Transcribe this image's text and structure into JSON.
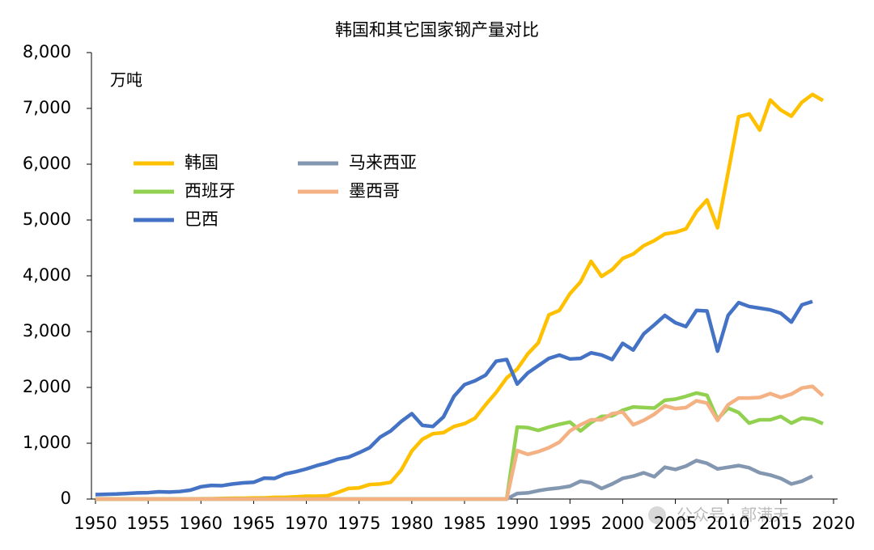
{
  "chart_data": {
    "type": "line",
    "title": "韩国和其它国家钢产量对比",
    "unit_label": "万吨",
    "watermark": "公众号 · 郭满天",
    "x": [
      1950,
      1951,
      1952,
      1953,
      1954,
      1955,
      1956,
      1957,
      1958,
      1959,
      1960,
      1961,
      1962,
      1963,
      1964,
      1965,
      1966,
      1967,
      1968,
      1969,
      1970,
      1971,
      1972,
      1973,
      1974,
      1975,
      1976,
      1977,
      1978,
      1979,
      1980,
      1981,
      1982,
      1983,
      1984,
      1985,
      1986,
      1987,
      1988,
      1989,
      1990,
      1991,
      1992,
      1993,
      1994,
      1995,
      1996,
      1997,
      1998,
      1999,
      2000,
      2001,
      2002,
      2003,
      2004,
      2005,
      2006,
      2007,
      2008,
      2009,
      2010,
      2011,
      2012,
      2013,
      2014,
      2015,
      2016,
      2017,
      2018,
      2019
    ],
    "xlim": [
      1950,
      2020
    ],
    "xticks": [
      1950,
      1955,
      1960,
      1965,
      1970,
      1975,
      1980,
      1985,
      1990,
      1995,
      2000,
      2005,
      2010,
      2015,
      2020
    ],
    "ylim": [
      0,
      8000
    ],
    "yticks": [
      0,
      {
        "value": 1000,
        "label": "1,000"
      },
      {
        "value": 2000,
        "label": "2,000"
      },
      {
        "value": 3000,
        "label": "3,000"
      },
      {
        "value": 4000,
        "label": "4,000"
      },
      {
        "value": 5000,
        "label": "5,000"
      },
      {
        "value": 6000,
        "label": "6,000"
      },
      {
        "value": 7000,
        "label": "7,000"
      },
      {
        "value": 8000,
        "label": "8,000"
      }
    ],
    "series": [
      {
        "name": "韩国",
        "color": "#FFC000",
        "values": [
          0,
          0,
          0,
          0,
          0,
          0,
          0,
          0,
          0,
          0,
          5,
          5,
          10,
          15,
          15,
          20,
          20,
          30,
          30,
          40,
          50,
          50,
          60,
          120,
          190,
          200,
          260,
          270,
          300,
          520,
          860,
          1070,
          1170,
          1190,
          1300,
          1350,
          1450,
          1690,
          1910,
          2170,
          2330,
          2600,
          2800,
          3300,
          3380,
          3680,
          3890,
          4260,
          3990,
          4110,
          4310,
          4390,
          4540,
          4630,
          4750,
          4780,
          4840,
          5150,
          5360,
          4860,
          5850,
          6850,
          6900,
          6610,
          7150,
          6970,
          6860,
          7110,
          7250,
          7140
        ]
      },
      {
        "name": "马来西亚",
        "color": "#8497B0",
        "values": [
          0,
          0,
          0,
          0,
          0,
          0,
          0,
          0,
          0,
          0,
          0,
          0,
          0,
          0,
          0,
          0,
          0,
          0,
          0,
          0,
          0,
          0,
          0,
          0,
          0,
          0,
          0,
          0,
          0,
          0,
          0,
          0,
          0,
          0,
          0,
          0,
          0,
          0,
          0,
          0,
          100,
          110,
          150,
          180,
          200,
          230,
          320,
          290,
          190,
          270,
          370,
          410,
          470,
          400,
          570,
          530,
          590,
          690,
          640,
          540,
          570,
          600,
          560,
          470,
          430,
          370,
          270,
          320,
          410,
          null
        ]
      },
      {
        "name": "西班牙",
        "color": "#92D050",
        "values": [
          0,
          0,
          0,
          0,
          0,
          0,
          0,
          0,
          0,
          0,
          0,
          0,
          0,
          0,
          0,
          0,
          0,
          0,
          0,
          0,
          0,
          0,
          0,
          0,
          0,
          0,
          0,
          0,
          0,
          0,
          0,
          0,
          0,
          0,
          0,
          0,
          0,
          0,
          0,
          0,
          1290,
          1280,
          1230,
          1290,
          1340,
          1380,
          1220,
          1370,
          1480,
          1490,
          1590,
          1650,
          1640,
          1630,
          1770,
          1790,
          1840,
          1900,
          1860,
          1430,
          1630,
          1550,
          1360,
          1420,
          1420,
          1480,
          1360,
          1450,
          1430,
          1350
        ]
      },
      {
        "name": "墨西哥",
        "color": "#F4B183",
        "values": [
          0,
          0,
          0,
          0,
          0,
          0,
          0,
          0,
          0,
          0,
          0,
          0,
          0,
          0,
          0,
          0,
          0,
          0,
          0,
          0,
          0,
          0,
          0,
          0,
          0,
          0,
          0,
          0,
          0,
          0,
          0,
          0,
          0,
          0,
          0,
          0,
          0,
          0,
          0,
          0,
          870,
          800,
          850,
          920,
          1020,
          1220,
          1330,
          1420,
          1420,
          1530,
          1560,
          1330,
          1410,
          1520,
          1670,
          1620,
          1640,
          1760,
          1720,
          1410,
          1690,
          1810,
          1810,
          1820,
          1890,
          1820,
          1880,
          1990,
          2020,
          1850
        ]
      },
      {
        "name": "巴西",
        "color": "#4472C4",
        "values": [
          80,
          85,
          90,
          100,
          110,
          115,
          130,
          125,
          135,
          160,
          220,
          245,
          240,
          270,
          290,
          300,
          375,
          370,
          450,
          490,
          540,
          600,
          650,
          715,
          750,
          830,
          920,
          1110,
          1220,
          1390,
          1530,
          1320,
          1300,
          1470,
          1840,
          2050,
          2120,
          2220,
          2470,
          2500,
          2060,
          2260,
          2390,
          2520,
          2580,
          2510,
          2520,
          2620,
          2580,
          2500,
          2790,
          2670,
          2960,
          3120,
          3290,
          3160,
          3090,
          3380,
          3370,
          2650,
          3290,
          3520,
          3450,
          3420,
          3390,
          3330,
          3170,
          3480,
          3540,
          null
        ]
      }
    ]
  }
}
